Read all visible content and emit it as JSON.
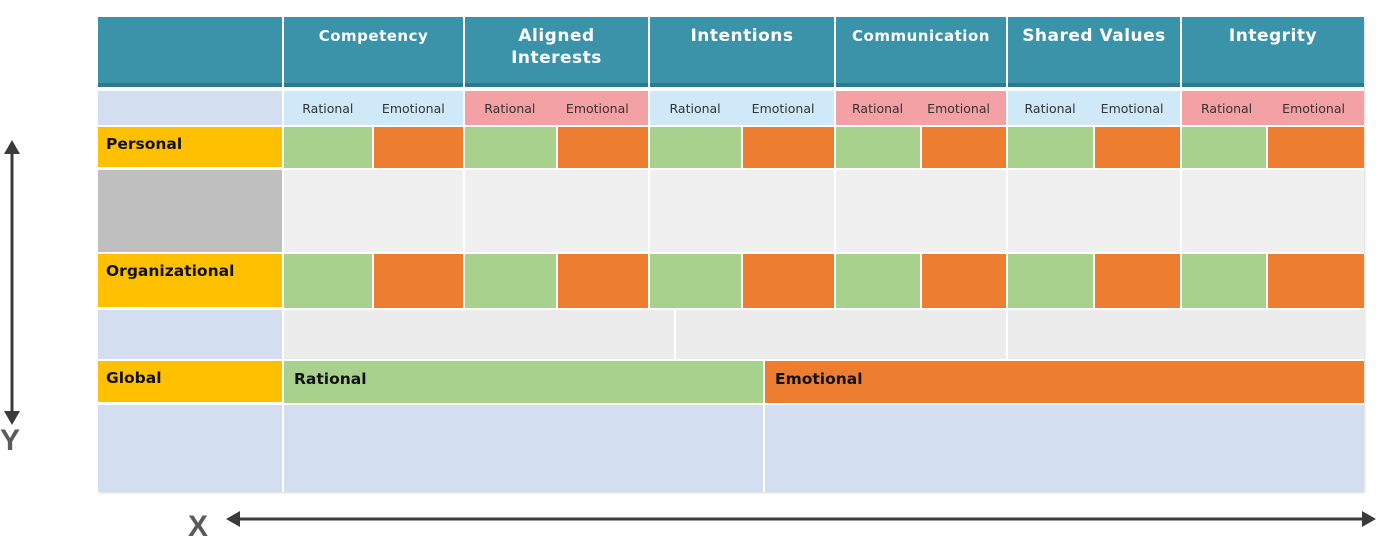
{
  "axes": {
    "x_label": "X",
    "y_label": "Y"
  },
  "columns": [
    "Competency",
    "Aligned Interests",
    "Intentions",
    "Communication",
    "Shared Values",
    "Integrity"
  ],
  "subheaders": [
    "Rational",
    "Emotional"
  ],
  "rows": {
    "personal": "Personal",
    "organizational": "Organizational",
    "global": "Global"
  },
  "global_bars": {
    "rational": "Rational",
    "emotional": "Emotional"
  },
  "colors": {
    "header_teal": "#3a93a8",
    "subheader_blue": "#cfe9f8",
    "subheader_pink": "#f4a1a6",
    "row_label_gold": "#ffc000",
    "rational_green": "#a9d18e",
    "emotional_orange": "#ed7d31",
    "light_gray": "#f0f0f0",
    "mid_gray": "#bfbfbf",
    "pale_blue": "#d3dff0"
  }
}
